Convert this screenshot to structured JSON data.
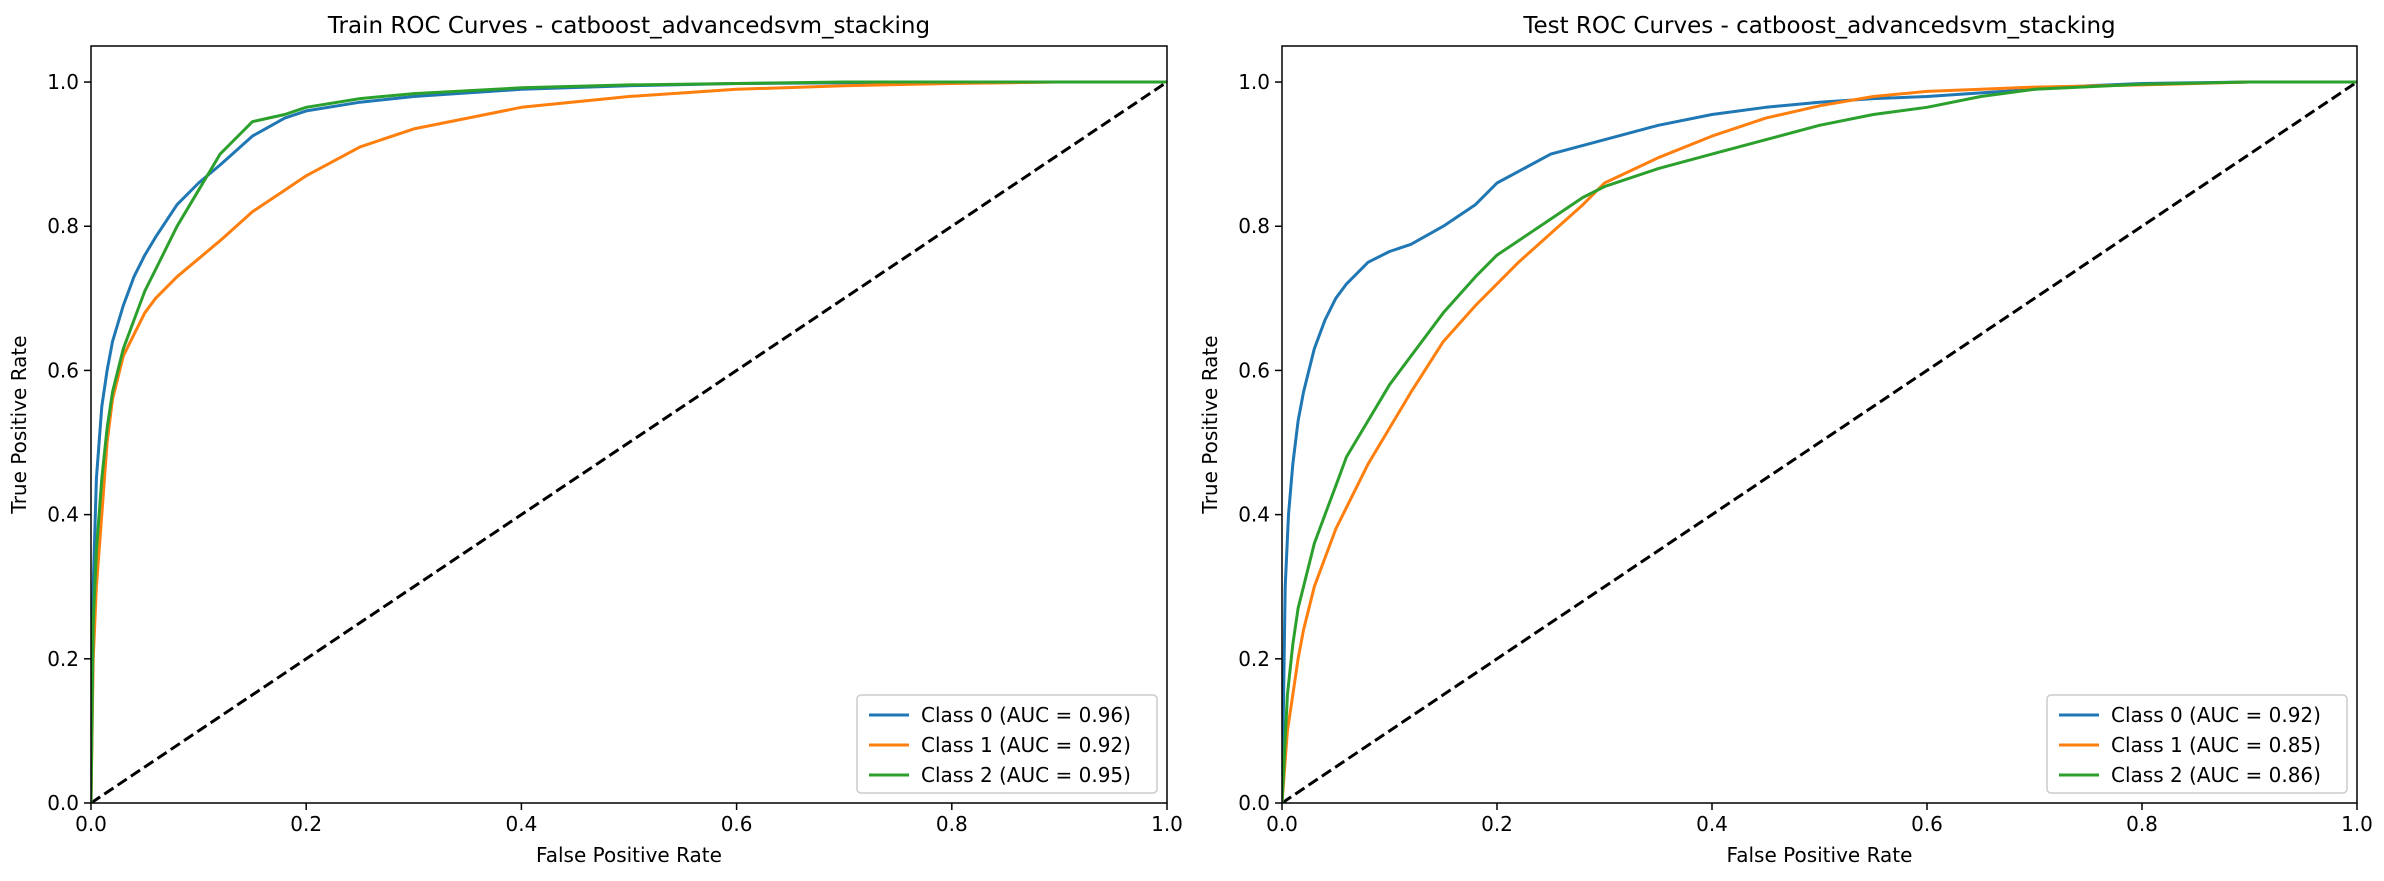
{
  "chart_data": [
    {
      "type": "line",
      "title": "Train ROC Curves - catboost_advancedsvm_stacking",
      "xlabel": "False Positive Rate",
      "ylabel": "True Positive Rate",
      "xlim": [
        0.0,
        1.0
      ],
      "ylim": [
        0.0,
        1.05
      ],
      "xticks": [
        0.0,
        0.2,
        0.4,
        0.6,
        0.8,
        1.0
      ],
      "yticks": [
        0.0,
        0.2,
        0.4,
        0.6,
        0.8,
        1.0
      ],
      "grid": false,
      "legend_position": "lower right",
      "baseline": {
        "x": [
          0,
          1
        ],
        "y": [
          0,
          1
        ],
        "style": "dashed",
        "color": "#000000"
      },
      "series": [
        {
          "name": "Class 0 (AUC = 0.96)",
          "color": "#1f77b4",
          "x": [
            0,
            0.002,
            0.005,
            0.01,
            0.015,
            0.02,
            0.03,
            0.04,
            0.05,
            0.06,
            0.08,
            0.1,
            0.12,
            0.15,
            0.18,
            0.2,
            0.25,
            0.3,
            0.35,
            0.4,
            0.5,
            0.6,
            0.7,
            0.8,
            0.9,
            1.0
          ],
          "y": [
            0,
            0.3,
            0.45,
            0.55,
            0.6,
            0.64,
            0.69,
            0.73,
            0.76,
            0.785,
            0.83,
            0.86,
            0.885,
            0.925,
            0.95,
            0.96,
            0.972,
            0.98,
            0.985,
            0.99,
            0.995,
            0.998,
            0.999,
            1.0,
            1.0,
            1.0
          ]
        },
        {
          "name": "Class 1 (AUC = 0.92)",
          "color": "#ff7f0e",
          "x": [
            0,
            0.002,
            0.005,
            0.01,
            0.015,
            0.02,
            0.03,
            0.04,
            0.05,
            0.06,
            0.08,
            0.1,
            0.12,
            0.15,
            0.18,
            0.2,
            0.25,
            0.3,
            0.35,
            0.4,
            0.5,
            0.6,
            0.7,
            0.8,
            0.9,
            1.0
          ],
          "y": [
            0,
            0.2,
            0.3,
            0.4,
            0.5,
            0.56,
            0.62,
            0.65,
            0.68,
            0.7,
            0.73,
            0.755,
            0.78,
            0.82,
            0.85,
            0.87,
            0.91,
            0.935,
            0.95,
            0.965,
            0.98,
            0.99,
            0.995,
            0.998,
            1.0,
            1.0
          ]
        },
        {
          "name": "Class 2 (AUC = 0.95)",
          "color": "#2ca02c",
          "x": [
            0,
            0.002,
            0.005,
            0.01,
            0.015,
            0.02,
            0.03,
            0.04,
            0.05,
            0.06,
            0.08,
            0.1,
            0.12,
            0.14,
            0.15,
            0.18,
            0.2,
            0.25,
            0.3,
            0.35,
            0.4,
            0.5,
            0.6,
            0.7,
            0.8,
            0.9,
            1.0
          ],
          "y": [
            0,
            0.25,
            0.35,
            0.45,
            0.52,
            0.57,
            0.63,
            0.67,
            0.71,
            0.74,
            0.8,
            0.85,
            0.9,
            0.93,
            0.945,
            0.955,
            0.965,
            0.977,
            0.984,
            0.988,
            0.992,
            0.996,
            0.998,
            1.0,
            1.0,
            1.0,
            1.0
          ]
        }
      ]
    },
    {
      "type": "line",
      "title": "Test ROC Curves - catboost_advancedsvm_stacking",
      "xlabel": "False Positive Rate",
      "ylabel": "True Positive Rate",
      "xlim": [
        0.0,
        1.0
      ],
      "ylim": [
        0.0,
        1.05
      ],
      "xticks": [
        0.0,
        0.2,
        0.4,
        0.6,
        0.8,
        1.0
      ],
      "yticks": [
        0.0,
        0.2,
        0.4,
        0.6,
        0.8,
        1.0
      ],
      "grid": false,
      "legend_position": "lower right",
      "baseline": {
        "x": [
          0,
          1
        ],
        "y": [
          0,
          1
        ],
        "style": "dashed",
        "color": "#000000"
      },
      "series": [
        {
          "name": "Class 0 (AUC = 0.92)",
          "color": "#1f77b4",
          "x": [
            0,
            0.003,
            0.006,
            0.01,
            0.015,
            0.02,
            0.03,
            0.04,
            0.05,
            0.06,
            0.08,
            0.1,
            0.12,
            0.15,
            0.18,
            0.2,
            0.25,
            0.3,
            0.35,
            0.4,
            0.45,
            0.5,
            0.55,
            0.6,
            0.65,
            0.7,
            0.75,
            0.8,
            0.9,
            1.0
          ],
          "y": [
            0,
            0.3,
            0.4,
            0.47,
            0.53,
            0.57,
            0.63,
            0.67,
            0.7,
            0.72,
            0.75,
            0.765,
            0.775,
            0.8,
            0.83,
            0.86,
            0.9,
            0.92,
            0.94,
            0.955,
            0.965,
            0.972,
            0.977,
            0.98,
            0.985,
            0.99,
            0.995,
            0.998,
            1.0,
            1.0
          ]
        },
        {
          "name": "Class 1 (AUC = 0.85)",
          "color": "#ff7f0e",
          "x": [
            0,
            0.005,
            0.01,
            0.015,
            0.02,
            0.03,
            0.04,
            0.05,
            0.06,
            0.08,
            0.1,
            0.12,
            0.15,
            0.18,
            0.2,
            0.22,
            0.25,
            0.28,
            0.3,
            0.35,
            0.4,
            0.45,
            0.5,
            0.55,
            0.6,
            0.65,
            0.7,
            0.8,
            0.9,
            1.0
          ],
          "y": [
            0,
            0.1,
            0.15,
            0.2,
            0.24,
            0.3,
            0.34,
            0.38,
            0.41,
            0.47,
            0.52,
            0.57,
            0.64,
            0.69,
            0.72,
            0.75,
            0.79,
            0.83,
            0.86,
            0.895,
            0.925,
            0.95,
            0.967,
            0.98,
            0.987,
            0.99,
            0.993,
            0.996,
            1.0,
            1.0
          ]
        },
        {
          "name": "Class 2 (AUC = 0.86)",
          "color": "#2ca02c",
          "x": [
            0,
            0.005,
            0.01,
            0.015,
            0.02,
            0.03,
            0.04,
            0.05,
            0.06,
            0.08,
            0.1,
            0.12,
            0.15,
            0.18,
            0.2,
            0.22,
            0.25,
            0.28,
            0.3,
            0.35,
            0.4,
            0.45,
            0.5,
            0.55,
            0.6,
            0.65,
            0.7,
            0.8,
            0.9,
            1.0
          ],
          "y": [
            0,
            0.15,
            0.22,
            0.27,
            0.3,
            0.36,
            0.4,
            0.44,
            0.48,
            0.53,
            0.58,
            0.62,
            0.68,
            0.73,
            0.76,
            0.78,
            0.81,
            0.84,
            0.855,
            0.88,
            0.9,
            0.92,
            0.94,
            0.955,
            0.965,
            0.98,
            0.99,
            0.997,
            1.0,
            1.0
          ]
        }
      ]
    }
  ]
}
